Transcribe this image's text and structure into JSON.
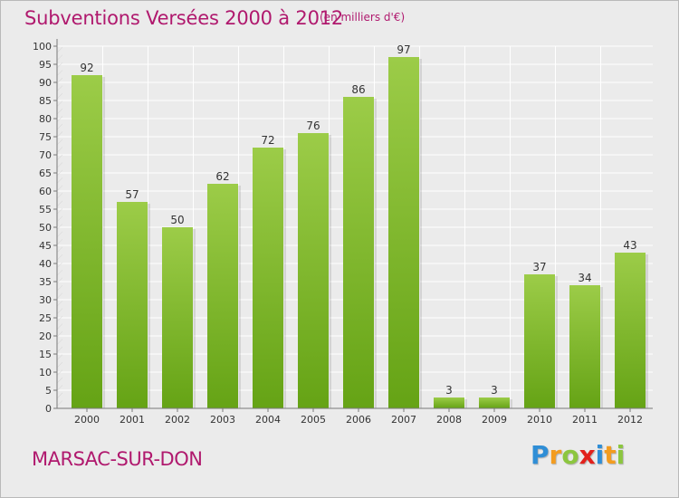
{
  "header": {
    "title": "Subventions Versées 2000 à 2012",
    "unit_note": "(en milliers d'€)"
  },
  "footer": {
    "commune": "MARSAC-SUR-DON",
    "logo_letters": [
      "P",
      "r",
      "o",
      "x",
      "i",
      "t",
      "i"
    ],
    "logo_colors": [
      "#2f8ed6",
      "#f39c1f",
      "#8cc63f",
      "#e2211c",
      "#2f8ed6",
      "#f39c1f",
      "#8cc63f"
    ]
  },
  "colors": {
    "title": "#b0196e",
    "bar_light": "#9ccc48",
    "bar_dark": "#65a315",
    "background": "#ebebeb"
  },
  "chart_data": {
    "type": "bar",
    "categories": [
      "2000",
      "2001",
      "2002",
      "2003",
      "2004",
      "2005",
      "2006",
      "2007",
      "2008",
      "2009",
      "2010",
      "2011",
      "2012"
    ],
    "values": [
      92,
      57,
      50,
      62,
      72,
      76,
      86,
      97,
      3,
      3,
      37,
      34,
      43
    ],
    "data_labels": [
      "92",
      "57",
      "50",
      "62",
      "72",
      "76",
      "86",
      "97",
      "3",
      "3",
      "37",
      "34",
      "43"
    ],
    "y_ticks": [
      "0",
      "5",
      "10",
      "15",
      "20",
      "25",
      "30",
      "35",
      "40",
      "45",
      "50",
      "55",
      "60",
      "65",
      "70",
      "75",
      "80",
      "85",
      "90",
      "95",
      "100"
    ],
    "ylim": [
      0,
      100
    ],
    "grid": true,
    "legend": "none"
  }
}
